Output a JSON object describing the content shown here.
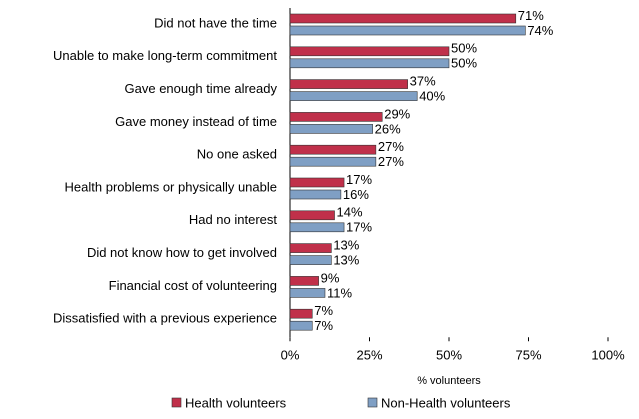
{
  "chart_data": {
    "type": "bar",
    "orientation": "horizontal",
    "categories": [
      "Did not have the time",
      "Unable to make long-term commitment",
      "Gave enough time already",
      "Gave money instead of time",
      "No one asked",
      "Health problems or physically unable",
      "Had no interest",
      "Did not know how to get involved",
      "Financial cost of volunteering",
      "Dissatisfied with a previous experience"
    ],
    "series": [
      {
        "name": "Health volunteers",
        "color": "#c0304a",
        "values": [
          71,
          50,
          37,
          29,
          27,
          17,
          14,
          13,
          9,
          7
        ],
        "value_labels": [
          "71%",
          "50%",
          "37%",
          "29%",
          "27%",
          "17%",
          "14%",
          "13%",
          "9%",
          "7%"
        ]
      },
      {
        "name": "Non-Health volunteers",
        "color": "#7f9fc4",
        "values": [
          74,
          50,
          40,
          26,
          27,
          16,
          17,
          13,
          11,
          7
        ],
        "value_labels": [
          "74%",
          "50%",
          "40%",
          "26%",
          "27%",
          "16%",
          "17%",
          "13%",
          "11%",
          "7%"
        ]
      }
    ],
    "xlim": [
      0,
      100
    ],
    "xticks": [
      {
        "value": 0,
        "label": "0%"
      },
      {
        "value": 25,
        "label": "25%"
      },
      {
        "value": 50,
        "label": "50%"
      },
      {
        "value": 75,
        "label": "75%"
      },
      {
        "value": 100,
        "label": "100%"
      }
    ],
    "x_label": "% volunteers",
    "grid": false,
    "legend": "bottom"
  }
}
